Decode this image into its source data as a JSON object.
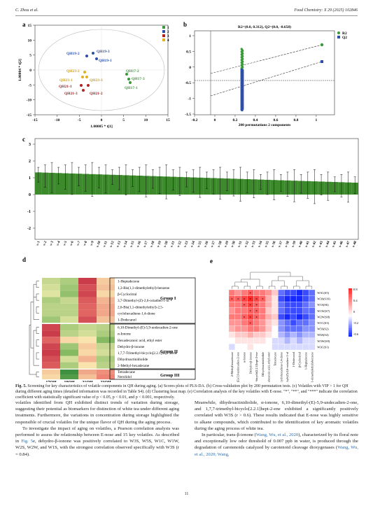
{
  "header": {
    "authors": "C. Zhou et al.",
    "journal": "Food Chemistry: X 29 (2025) 102846"
  },
  "panels": {
    "a": {
      "letter": "a",
      "ylabel": "1.00004 * t[2]",
      "xlabel": "1.00005 * t[1]",
      "x_ticks": [
        "-15",
        "-10",
        "-5",
        "0",
        "5",
        "10",
        "15"
      ],
      "y_ticks": [
        "15",
        "10",
        "5",
        "0",
        "-5",
        "-10",
        "-15"
      ],
      "legend": [
        {
          "label": "1",
          "color": "#3a9a3a"
        },
        {
          "label": "2",
          "color": "#2e4fa8"
        },
        {
          "label": "3",
          "color": "#b22222"
        },
        {
          "label": "4",
          "color": "#e0b020"
        }
      ],
      "point_labels": [
        {
          "text": "QH19-2",
          "color": "#2e4fa8"
        },
        {
          "text": "QH19-3",
          "color": "#2e4fa8"
        },
        {
          "text": "QH19-1",
          "color": "#2e4fa8"
        },
        {
          "text": "QH23-2",
          "color": "#c8a030"
        },
        {
          "text": "QH23-1",
          "color": "#c8a030"
        },
        {
          "text": "QH23-3",
          "color": "#c8a030"
        },
        {
          "text": "QH21-1",
          "color": "#9a1c1c"
        },
        {
          "text": "QH21-3",
          "color": "#9a1c1c"
        },
        {
          "text": "QH21-2",
          "color": "#9a1c1c"
        },
        {
          "text": "QH17-2",
          "color": "#3a9a3a"
        },
        {
          "text": "QH17-3",
          "color": "#3a9a3a"
        },
        {
          "text": "QH17-1",
          "color": "#3a9a3a"
        }
      ]
    },
    "b": {
      "letter": "b",
      "title": "R2=(0.0, 0.312), Q2=(0.0, -0.658)",
      "xlabel": "200 permutations 2 components",
      "x_ticks": [
        "-0.2",
        "0",
        "0.2",
        "0.4",
        "0.6",
        "0.8",
        "1"
      ],
      "y_ticks": [
        "1",
        "0.5",
        "0",
        "-0.5",
        "-1",
        "-1.5"
      ],
      "legend": [
        {
          "label": "R2",
          "color": "#3a9a3a"
        },
        {
          "label": "Q2",
          "color": "#2e4fa8"
        }
      ]
    },
    "c": {
      "letter": "c",
      "y_ticks": [
        "3",
        "2",
        "1",
        "0",
        "-1",
        "-2"
      ],
      "categories": [
        "v-1",
        "v-2",
        "v-3",
        "v-4",
        "v-5",
        "v-6",
        "v-7",
        "v-8",
        "v-9",
        "v-10",
        "v-11",
        "v-12",
        "v-13",
        "v-14",
        "v-15",
        "v-16",
        "v-17",
        "v-18",
        "v-19",
        "v-20",
        "v-21",
        "v-22",
        "v-23",
        "v-24",
        "v-25",
        "v-26",
        "v-27",
        "v-28",
        "v-29",
        "v-30",
        "v-31",
        "v-32",
        "v-33",
        "v-34",
        "v-35",
        "v-36",
        "v-37",
        "v-38",
        "v-39",
        "v-40",
        "v-41",
        "v-42",
        "v-43",
        "v-44",
        "v-45",
        "v-46",
        "v-47",
        "v-48"
      ]
    },
    "d": {
      "letter": "d",
      "columns": [
        "17QH",
        "19QH",
        "21QH",
        "23QH"
      ],
      "rows": [
        "1-Heptadecene",
        "1,3-Bis(1,1-dimethylethyl)-benzene",
        "β-Cyclocitral",
        "3,7-Dimethyl-(Z)-2,6-octadien-1-ol",
        "2,6-Bis(1,1-dimethylethyl)-2,5-",
        "cyclohexadiene-1,4-dione",
        "1-Dodecanol",
        "6,10-Dimethyl-(E)-5,9-undecadien-2-one",
        "α-Ionone",
        "Hexadecanoic acid, ethyl ester",
        "Dehydro-β-ionone",
        "1,7,7-Trimethyl-bicyclo[2.2.1]hept-2 ene",
        "Dihydroactinidiolide",
        "2-Methyl-hexadecane",
        "Tetradecane",
        "Nerolidol"
      ],
      "groups": [
        "Group I",
        "Group II",
        "Group III"
      ],
      "scale": [
        "-2",
        "-1",
        "0",
        "1",
        "2"
      ]
    },
    "e": {
      "letter": "e",
      "row_labels": [
        "W3C(S5)",
        "W3S(S10)",
        "W1S(S6)",
        "W1W(S7)",
        "W2W(S8)",
        "W1C(S3)",
        "W5S(S2)",
        "W6S(S4)",
        "W3W(S9)",
        "W3C(S1)"
      ],
      "col_labels": [
        "2-Methylhexadecane",
        "6,10-Dimethyl-(E)-5,9-undecadien-2-one",
        "α-Ionone",
        "Dehydro-β-ionone",
        "1,7,7-Trimethyl-bicyclo[2.2.1]hept-2-ene",
        "Dihydroactinidiolide",
        "Hexadecanoic acid, ethyl ester",
        "Tetradecane",
        "2,6-Bis(1,1-dimethylethyl)-2,5-cyclohexadiene-1,4-dione",
        "3,7-Dimethyl-(Z)-2,6-octadien-1-ol",
        "1-Dodecanol",
        "β-Cyclocitral",
        "1-Heptadecene",
        "1,3-Bis(1,1-dimethylethyl)-benzene"
      ],
      "scale": [
        "0.8",
        "0.4",
        "0",
        "-0.2",
        "-0.6"
      ]
    }
  },
  "caption": {
    "label": "Fig. 5.",
    "text": "Screening for key characteristics of volatile components in QH during aging. (a) Scores plots of PLS-DA. (b) Cross-validation plot by 200 permutation tests. (c) Volatiles with VIP > 1 for QH during different aging times (detailed information was recorded in Table S4). (d) Clustering heat map. (e) Correlation analysis of the key volatiles with E-nose. \"*\", \"**\", and \"***\" indicate the correlation coefficient with statistically significant value of p < 0.05, p < 0.01, and p < 0.001, respectively."
  },
  "col1": {
    "p1": "volatiles identified from QH exhibited distinct trends of variation during storage, suggesting their potential as biomarkers for distinction of white tea under different aging treatments. Furthermore, the variations in concentration during storage highlighted the responsible of crucial volatiles for the unique flavor of QH during the aging process.",
    "p2a": "To investigate the impact of aging on volatiles, a Pearson correlation analysis was performed to assess the relationship between E-nose and 15 key volatiles. As described in ",
    "p2link": "Fig. 5",
    "p2b": "e, dehydro-β-ionone was positively correlated to W3S, W5S, W1C, W1W, W2S, W2W, and W1S, with the strongest correlation observed specifically with W3S (r = 0.84)."
  },
  "col2": {
    "p1": "Meanwhile, dihydroactinidiolide, α-ionone, 6,10-dimethyl-(E)-5,9-undecadien-2-one, and 1,7,7-trimethyl-bicyclo[2.2.1]hept-2-ene exhibited a significantly positively correlated with W3S (r > 0.6). These results indicated that E-nose was highly sensitive to alkane compounds, which contributed to the identification of key aromatic volatiles during the aging process of white tea.",
    "p2a": "In particular, trans-β-ionone (",
    "p2link1": "Wang, Wu, et al., 2020",
    "p2b": "), characterized by its floral note and exceptionally low odor threshold of 0.007 ppb in water, is produced through the degradation of carotenoids catalyzed by carotenoid cleavage dioxygenases (",
    "p2link2": "Wang, Wu, et al., 2020; Wang,"
  },
  "page_number": "11"
}
